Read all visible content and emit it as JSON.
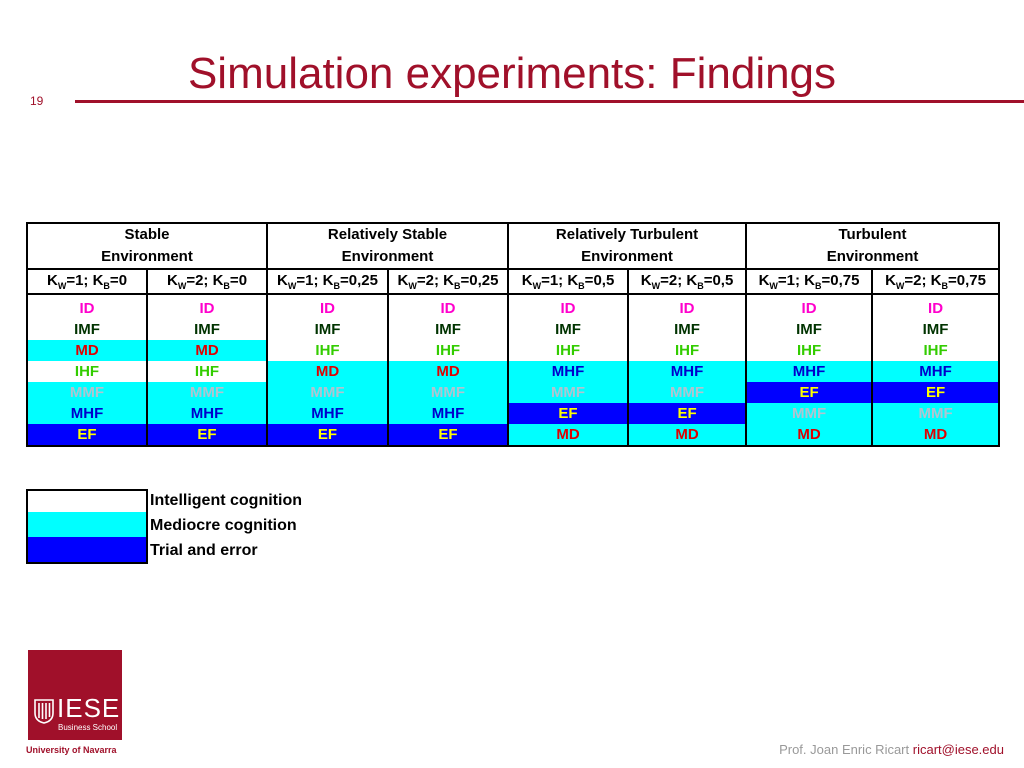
{
  "slide": {
    "title": "Simulation experiments: Findings",
    "number": "19"
  },
  "table": {
    "environments": [
      {
        "line1": "Stable",
        "line2": "Environment"
      },
      {
        "line1": "Relatively Stable",
        "line2": "Environment"
      },
      {
        "line1": "Relatively Turbulent",
        "line2": "Environment"
      },
      {
        "line1": "Turbulent",
        "line2": "Environment"
      }
    ],
    "params": [
      {
        "kw": "1",
        "kb": "0"
      },
      {
        "kw": "2",
        "kb": "0"
      },
      {
        "kw": "1",
        "kb": "0,25"
      },
      {
        "kw": "2",
        "kb": "0,25"
      },
      {
        "kw": "1",
        "kb": "0,5"
      },
      {
        "kw": "2",
        "kb": "0,5"
      },
      {
        "kw": "1",
        "kb": "0,75"
      },
      {
        "kw": "2",
        "kb": "0,75"
      }
    ],
    "rows": [
      [
        "ID",
        "ID",
        "ID",
        "ID",
        "ID",
        "ID",
        "ID",
        "ID"
      ],
      [
        "IMF",
        "IMF",
        "IMF",
        "IMF",
        "IMF",
        "IMF",
        "IMF",
        "IMF"
      ],
      [
        "MD",
        "MD",
        "IHF",
        "IHF",
        "IHF",
        "IHF",
        "IHF",
        "IHF"
      ],
      [
        "IHF",
        "IHF",
        "MD",
        "MD",
        "MHF",
        "MHF",
        "MHF",
        "MHF"
      ],
      [
        "MMF",
        "MMF",
        "MMF",
        "MMF",
        "MMF",
        "MMF",
        "EF",
        "EF"
      ],
      [
        "MHF",
        "MHF",
        "MHF",
        "MHF",
        "EF",
        "EF",
        "MMF",
        "MMF"
      ],
      [
        "EF",
        "EF",
        "EF",
        "EF",
        "MD",
        "MD",
        "MD",
        "MD"
      ]
    ],
    "row_backgrounds": [
      [
        "white",
        "white",
        "white",
        "white",
        "white",
        "white",
        "white",
        "white"
      ],
      [
        "white",
        "white",
        "white",
        "white",
        "white",
        "white",
        "white",
        "white"
      ],
      [
        "cyan",
        "cyan",
        "white",
        "white",
        "white",
        "white",
        "white",
        "white"
      ],
      [
        "white",
        "white",
        "cyan",
        "cyan",
        "cyan",
        "cyan",
        "cyan",
        "cyan"
      ],
      [
        "cyan",
        "cyan",
        "cyan",
        "cyan",
        "cyan",
        "cyan",
        "blue",
        "blue"
      ],
      [
        "cyan",
        "cyan",
        "cyan",
        "cyan",
        "blue",
        "blue",
        "cyan",
        "cyan"
      ],
      [
        "blue",
        "blue",
        "blue",
        "blue",
        "cyan",
        "cyan",
        "cyan",
        "cyan"
      ]
    ],
    "label_colors": {
      "ID": "#ff00cc",
      "IMF": "#003300",
      "MD": "#e00000",
      "IHF": "#33cc00",
      "MMF": "#b0c4d0",
      "MHF": "#0000cc",
      "EF": "#ffff00"
    }
  },
  "legend": [
    {
      "color": "white",
      "label": "Intelligent cognition"
    },
    {
      "color": "cyan",
      "label": "Mediocre cognition"
    },
    {
      "color": "blue",
      "label": "Trial and error"
    }
  ],
  "branding": {
    "logo_name": "IESE",
    "logo_sub": "Business School",
    "university": "University of Navarra",
    "accent": "#a0102a"
  },
  "footer": {
    "prof": "Prof. Joan Enric Ricart",
    "email": "ricart@iese.edu"
  }
}
